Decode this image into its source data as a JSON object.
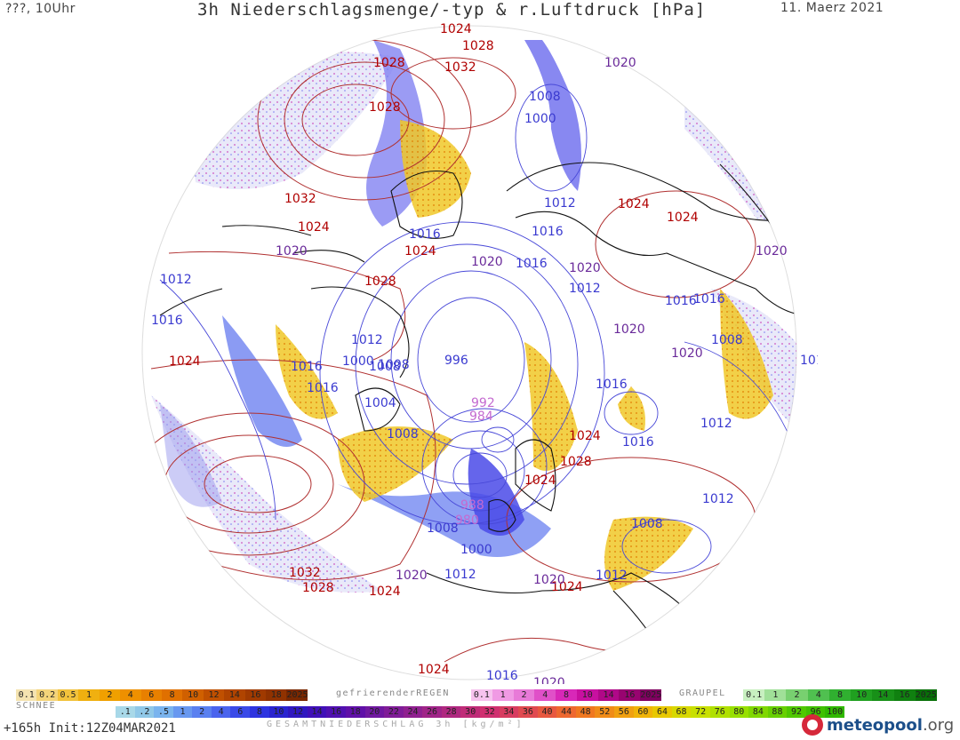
{
  "header": {
    "left": "???, 10Uhr",
    "title": "3h Niederschlagsmenge/-typ & r.Luftdruck [hPa]",
    "date": "11. Maerz 2021"
  },
  "map": {
    "colors": {
      "land_outline": "#111111",
      "isobar_high": "#b03030",
      "isobar_low": "#3a3ad0",
      "rain": "#f0c020",
      "snow": "#7a7af0",
      "mixed": "#c060c0",
      "disk_bg": "#ffffff"
    },
    "pressure_labels": [
      {
        "text": "1024",
        "kind": "high"
      },
      {
        "text": "1028",
        "kind": "high"
      },
      {
        "text": "1032",
        "kind": "high"
      },
      {
        "text": "1028",
        "kind": "high"
      },
      {
        "text": "1032",
        "kind": "high"
      },
      {
        "text": "1024",
        "kind": "high"
      },
      {
        "text": "1024",
        "kind": "high"
      },
      {
        "text": "1028",
        "kind": "high"
      },
      {
        "text": "1024",
        "kind": "high"
      },
      {
        "text": "1024",
        "kind": "high"
      },
      {
        "text": "1024",
        "kind": "high"
      },
      {
        "text": "1028",
        "kind": "high"
      },
      {
        "text": "1024",
        "kind": "high"
      },
      {
        "text": "1032",
        "kind": "high"
      },
      {
        "text": "1028",
        "kind": "high"
      },
      {
        "text": "1024",
        "kind": "high"
      },
      {
        "text": "1024",
        "kind": "high"
      },
      {
        "text": "1024",
        "kind": "high"
      },
      {
        "text": "1028",
        "kind": "high"
      },
      {
        "text": "1024",
        "kind": "high"
      },
      {
        "text": "1020",
        "kind": "mid"
      },
      {
        "text": "1020",
        "kind": "mid"
      },
      {
        "text": "1020",
        "kind": "mid"
      },
      {
        "text": "1020",
        "kind": "mid"
      },
      {
        "text": "1020",
        "kind": "mid"
      },
      {
        "text": "1020",
        "kind": "mid"
      },
      {
        "text": "1020",
        "kind": "mid"
      },
      {
        "text": "1020",
        "kind": "mid"
      },
      {
        "text": "1020",
        "kind": "mid"
      },
      {
        "text": "1020",
        "kind": "mid"
      },
      {
        "text": "1008",
        "kind": "low"
      },
      {
        "text": "1000",
        "kind": "low"
      },
      {
        "text": "1012",
        "kind": "low"
      },
      {
        "text": "1016",
        "kind": "low"
      },
      {
        "text": "1016",
        "kind": "low"
      },
      {
        "text": "1016",
        "kind": "low"
      },
      {
        "text": "1012",
        "kind": "low"
      },
      {
        "text": "1016",
        "kind": "low"
      },
      {
        "text": "1012",
        "kind": "low"
      },
      {
        "text": "1016",
        "kind": "low"
      },
      {
        "text": "1016",
        "kind": "low"
      },
      {
        "text": "1012",
        "kind": "low"
      },
      {
        "text": "1008",
        "kind": "low"
      },
      {
        "text": "1016",
        "kind": "low"
      },
      {
        "text": "1000",
        "kind": "low"
      },
      {
        "text": "1008",
        "kind": "low"
      },
      {
        "text": "1004",
        "kind": "low"
      },
      {
        "text": "1008",
        "kind": "low"
      },
      {
        "text": "996",
        "kind": "low"
      },
      {
        "text": "1016",
        "kind": "low"
      },
      {
        "text": "1016",
        "kind": "low"
      },
      {
        "text": "1016",
        "kind": "low"
      },
      {
        "text": "1008",
        "kind": "low"
      },
      {
        "text": "1016",
        "kind": "low"
      },
      {
        "text": "1012",
        "kind": "low"
      },
      {
        "text": "1012",
        "kind": "low"
      },
      {
        "text": "1008",
        "kind": "low"
      },
      {
        "text": "1012",
        "kind": "low"
      },
      {
        "text": "1000",
        "kind": "low"
      },
      {
        "text": "1008",
        "kind": "low"
      },
      {
        "text": "1012",
        "kind": "low"
      },
      {
        "text": "1016",
        "kind": "low"
      },
      {
        "text": "992",
        "kind": "deep"
      },
      {
        "text": "984",
        "kind": "deep"
      },
      {
        "text": "988",
        "kind": "deep"
      },
      {
        "text": "980",
        "kind": "deep"
      }
    ]
  },
  "legend": {
    "rain_label": "",
    "rain_scale": [
      "0.1",
      "0.2",
      "0.5",
      "1",
      "2",
      "4",
      "6",
      "8",
      "10",
      "12",
      "14",
      "16",
      "18",
      "2025+"
    ],
    "rain_colors": [
      "#f4e3b0",
      "#f4d47a",
      "#f2c23c",
      "#f0b010",
      "#f0a000",
      "#ee9000",
      "#e88000",
      "#e07000",
      "#d06000",
      "#c05000",
      "#b04400",
      "#a03a00",
      "#903200",
      "#7a2800"
    ],
    "freezing_label": "gefrierenderREGEN",
    "freezing_scale": [
      "0.1",
      "1",
      "2",
      "4",
      "8",
      "10",
      "14",
      "16",
      "2025+"
    ],
    "freezing_colors": [
      "#f6c2ee",
      "#f09ae4",
      "#e87ad8",
      "#e050c8",
      "#d828b8",
      "#c810a0",
      "#b00888",
      "#980470",
      "#800060"
    ],
    "graupel_label": "GRAUPEL",
    "graupel_scale": [
      "0.1",
      "1",
      "2",
      "4",
      "8",
      "10",
      "14",
      "16",
      "2025+"
    ],
    "graupel_colors": [
      "#c8f0c0",
      "#a0e098",
      "#78d070",
      "#50c050",
      "#30b030",
      "#20a020",
      "#189018",
      "#108010",
      "#087008"
    ],
    "snow_label": "SCHNEE",
    "snow_scale": [
      ".1",
      ".2",
      ".5",
      "1",
      "2",
      "4",
      "6",
      "8",
      "10",
      "12",
      "14",
      "16",
      "18",
      "20",
      "22",
      "24",
      "26",
      "28",
      "30",
      "32",
      "34",
      "36",
      "40",
      "44",
      "48",
      "52",
      "56",
      "60",
      "64",
      "68",
      "72",
      "76",
      "80",
      "84",
      "88",
      "92",
      "96",
      "100"
    ],
    "snow_colors": [
      "#a8d8e8",
      "#90c8e8",
      "#7ab4ee",
      "#6898f0",
      "#5a80f0",
      "#4a64ee",
      "#3a4ae8",
      "#2e34e0",
      "#2a24d0",
      "#3018c0",
      "#4010b8",
      "#5010b0",
      "#6010a8",
      "#7018a0",
      "#801c98",
      "#902090",
      "#a02488",
      "#b02880",
      "#c02c78",
      "#d03070",
      "#d83c60",
      "#e04a50",
      "#e85840",
      "#ee6830",
      "#f07820",
      "#f08c18",
      "#f0a010",
      "#f0b408",
      "#e8c800",
      "#d8d800",
      "#c8e000",
      "#b0e000",
      "#98e000",
      "#80d800",
      "#68d000",
      "#50c800",
      "#40c000",
      "#30b800"
    ],
    "footer_left": "+165h Init:12Z04MAR2021",
    "footer_caption": "GESAMTNIEDERSCHLAG 3h [kg/m²]",
    "brand": "meteopool",
    "brand_tld": ".org"
  }
}
